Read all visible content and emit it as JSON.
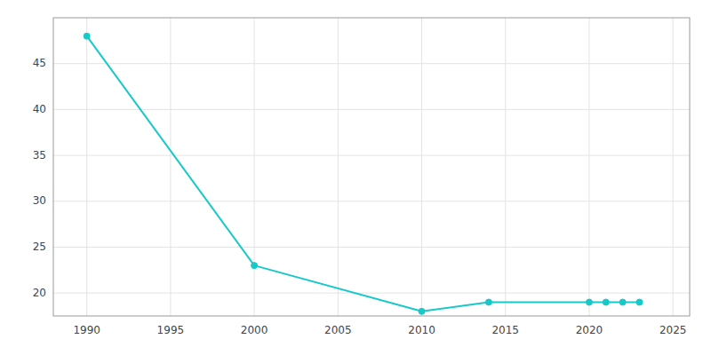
{
  "chart_data": {
    "type": "line",
    "x": [
      1990,
      2000,
      2010,
      2014,
      2020,
      2021,
      2022,
      2023
    ],
    "values": [
      48,
      23,
      18,
      19,
      19,
      19,
      19,
      19
    ],
    "color": "#17c9c9",
    "marker": "circle",
    "xlim": [
      1988,
      2026
    ],
    "ylim": [
      17.5,
      50
    ],
    "xticks": [
      1990,
      1995,
      2000,
      2005,
      2010,
      2015,
      2020,
      2025
    ],
    "yticks": [
      20,
      25,
      30,
      35,
      40,
      45
    ],
    "grid": true
  }
}
